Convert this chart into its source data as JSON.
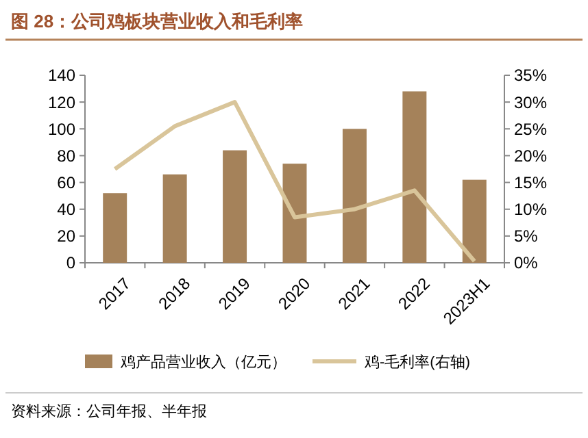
{
  "chart_data": {
    "type": "bar",
    "title": "图 28：公司鸡板块营业收入和毛利率",
    "categories": [
      "2017",
      "2018",
      "2019",
      "2020",
      "2021",
      "2022",
      "2023H1"
    ],
    "series": [
      {
        "name": "鸡产品营业收入（亿元）",
        "color": "#a5825a",
        "values": [
          52,
          66,
          84,
          74,
          100,
          128,
          62
        ]
      },
      {
        "name": "鸡-毛利率(右轴)",
        "type": "line",
        "axis": "y2",
        "color": "#d9c59a",
        "values": [
          17.5,
          25.5,
          30,
          8.5,
          10,
          13.5,
          0.3
        ]
      }
    ],
    "ylim": [
      0,
      140
    ],
    "yticks": [
      0,
      20,
      40,
      60,
      80,
      100,
      120,
      140
    ],
    "y2lim": [
      0,
      35
    ],
    "y2ticks": [
      {
        "value": 0,
        "label": "0%"
      },
      {
        "value": 5,
        "label": "5%"
      },
      {
        "value": 10,
        "label": "10%"
      },
      {
        "value": 15,
        "label": "15%"
      },
      {
        "value": 20,
        "label": "20%"
      },
      {
        "value": 25,
        "label": "25%"
      },
      {
        "value": 30,
        "label": "30%"
      },
      {
        "value": 35,
        "label": "35%"
      }
    ],
    "legend": "bottom",
    "annotations": [
      "资料来源：公司年报、半年报"
    ]
  }
}
